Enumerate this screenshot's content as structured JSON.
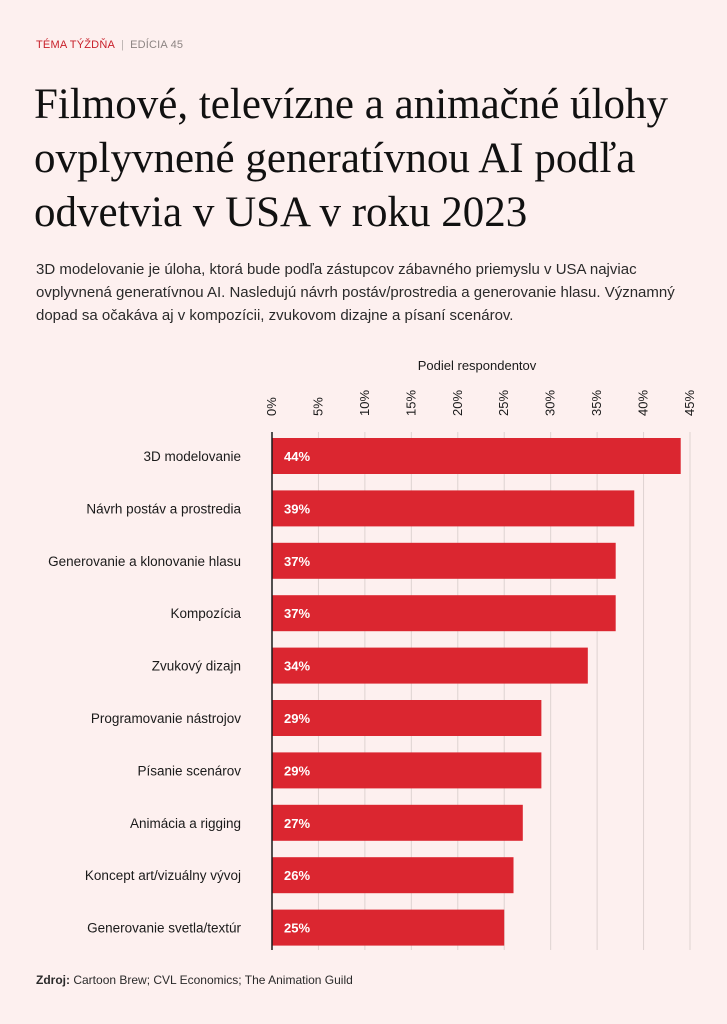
{
  "header": {
    "topic": "TÉMA TÝŽDŇA",
    "separator": "|",
    "edition": "EDÍCIA 45"
  },
  "title": "Filmové, televízne a animačné úlohy ovplyvnené generatívnou AI podľa odvetvia v USA v roku 2023",
  "subtitle": "3D modelovanie je úloha, ktorá bude podľa zástupcov zábavného priemyslu v USA najviac ovplyvnená generatívnou AI. Nasledujú návrh postáv/prostredia a generovanie hlasu. Významný dopad sa očakáva aj v kompozícii, zvukovom dizajne a písaní scenárov.",
  "source": {
    "label": "Zdroj:",
    "text": "Cartoon Brew; CVL Economics; The Animation Guild"
  },
  "colors": {
    "bar": "#db2630",
    "accent": "#c8202a",
    "background": "#fdf0ef",
    "grid": "#ded3d1"
  },
  "chart_data": {
    "type": "bar",
    "orientation": "horizontal",
    "xlabel": "Podiel respondentov",
    "xlim": [
      0,
      45
    ],
    "ticks": [
      0,
      5,
      10,
      15,
      20,
      25,
      30,
      35,
      40,
      45
    ],
    "tick_labels": [
      "0%",
      "5%",
      "10%",
      "15%",
      "20%",
      "25%",
      "30%",
      "35%",
      "40%",
      "45%"
    ],
    "categories": [
      "3D modelovanie",
      "Návrh postáv a prostredia",
      "Generovanie a klonovanie hlasu",
      "Kompozícia",
      "Zvukový dizajn",
      "Programovanie nástrojov",
      "Písanie scenárov",
      "Animácia a rigging",
      "Koncept art/vizuálny vývoj",
      "Generovanie svetla/textúr"
    ],
    "values": [
      44,
      39,
      37,
      37,
      34,
      29,
      29,
      27,
      26,
      25
    ],
    "value_labels": [
      "44%",
      "39%",
      "37%",
      "37%",
      "34%",
      "29%",
      "29%",
      "27%",
      "26%",
      "25%"
    ]
  }
}
